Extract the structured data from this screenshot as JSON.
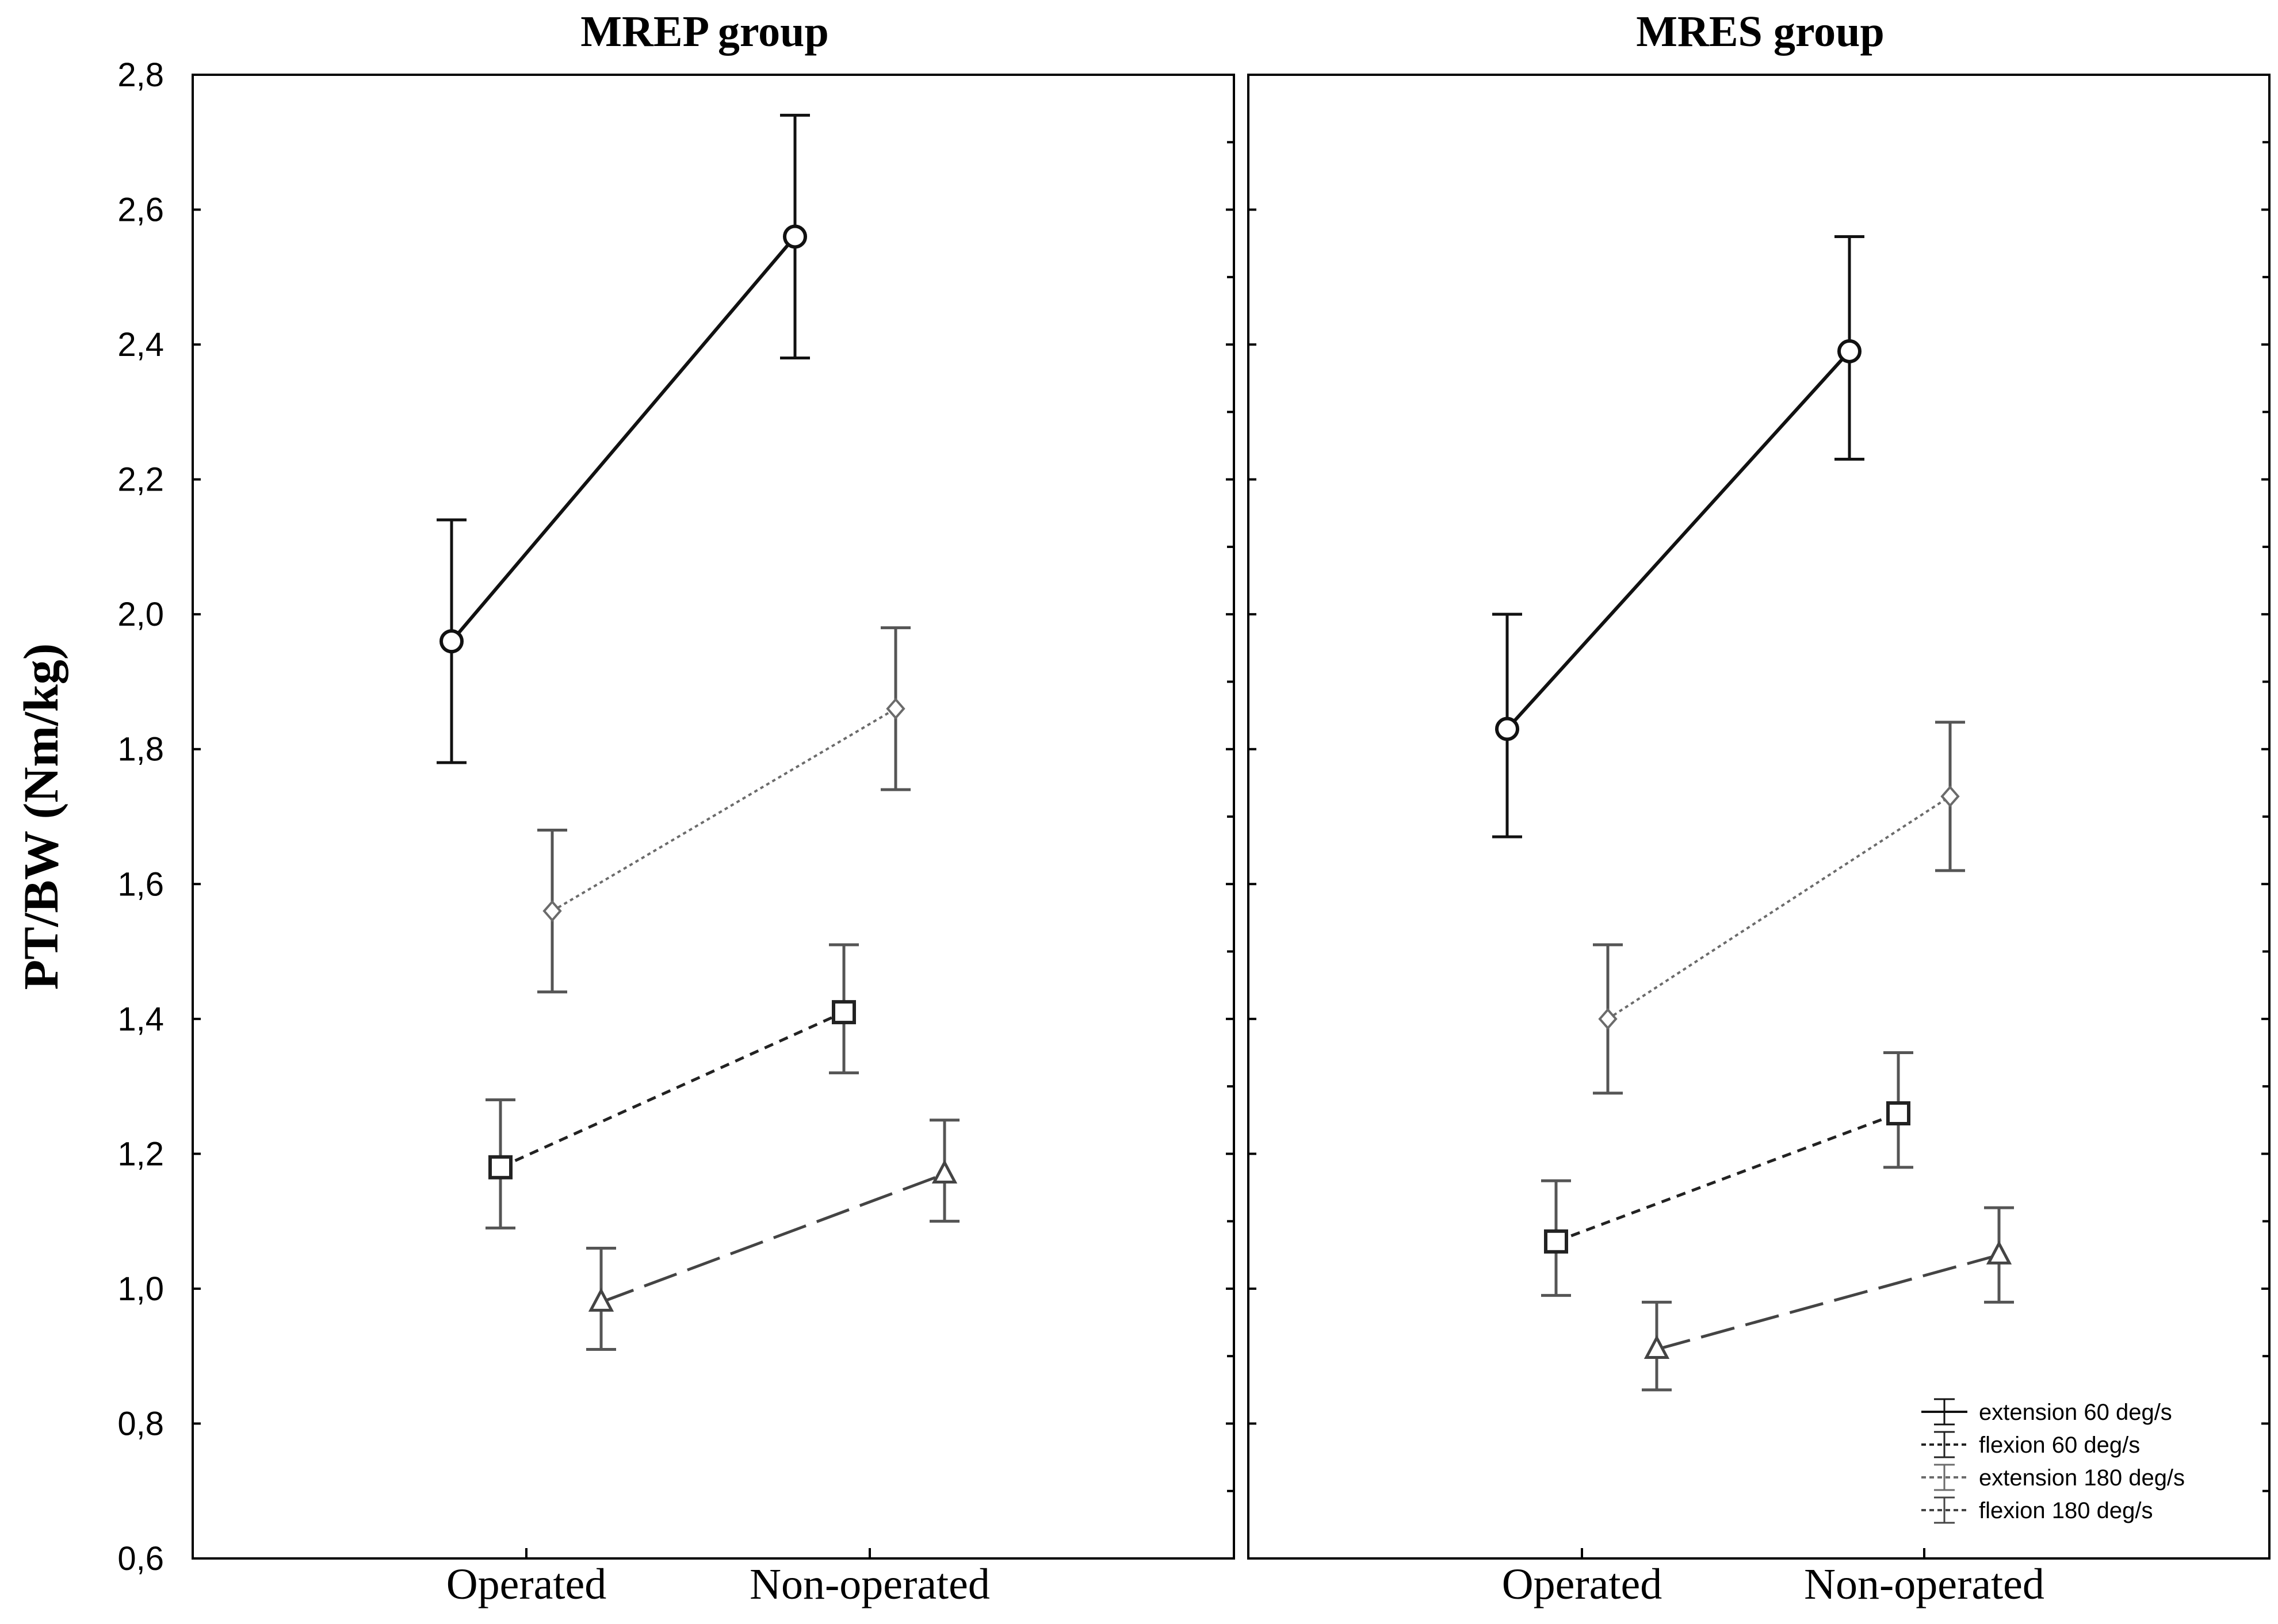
{
  "chart_data": {
    "type": "line",
    "ylabel": "PT/BW (Nm/kg)",
    "ylim": [
      0.6,
      2.8
    ],
    "yticks": [
      "0,6",
      "0,8",
      "1,0",
      "1,2",
      "1,4",
      "1,6",
      "1,8",
      "2,0",
      "2,2",
      "2,4",
      "2,6",
      "2,8"
    ],
    "categories": [
      "Operated",
      "Non-operated"
    ],
    "legend": [
      {
        "name": "extension 60 deg/s"
      },
      {
        "name": "flexion 60 deg/s"
      },
      {
        "name": "extension 180 deg/s"
      },
      {
        "name": "flexion 180 deg/s"
      }
    ],
    "panels": [
      {
        "title": "MREP group",
        "series": [
          {
            "name": "extension 60 deg/s",
            "values": [
              1.96,
              2.56
            ],
            "lower": [
              1.78,
              2.38
            ],
            "upper": [
              2.14,
              2.74
            ]
          },
          {
            "name": "flexion 60 deg/s",
            "values": [
              1.18,
              1.41
            ],
            "lower": [
              1.09,
              1.32
            ],
            "upper": [
              1.28,
              1.51
            ]
          },
          {
            "name": "extension 180 deg/s",
            "values": [
              1.56,
              1.86
            ],
            "lower": [
              1.44,
              1.74
            ],
            "upper": [
              1.68,
              1.98
            ]
          },
          {
            "name": "flexion 180 deg/s",
            "values": [
              0.98,
              1.17
            ],
            "lower": [
              0.91,
              1.1
            ],
            "upper": [
              1.06,
              1.25
            ]
          }
        ]
      },
      {
        "title": "MRES group",
        "series": [
          {
            "name": "extension 60 deg/s",
            "values": [
              1.83,
              2.39
            ],
            "lower": [
              1.67,
              2.23
            ],
            "upper": [
              2.0,
              2.56
            ]
          },
          {
            "name": "flexion 60 deg/s",
            "values": [
              1.07,
              1.26
            ],
            "lower": [
              0.99,
              1.18
            ],
            "upper": [
              1.16,
              1.35
            ]
          },
          {
            "name": "extension 180 deg/s",
            "values": [
              1.4,
              1.73
            ],
            "lower": [
              1.29,
              1.62
            ],
            "upper": [
              1.51,
              1.84
            ]
          },
          {
            "name": "flexion 180 deg/s",
            "values": [
              0.91,
              1.05
            ],
            "lower": [
              0.85,
              0.98
            ],
            "upper": [
              0.98,
              1.12
            ]
          }
        ]
      }
    ]
  }
}
